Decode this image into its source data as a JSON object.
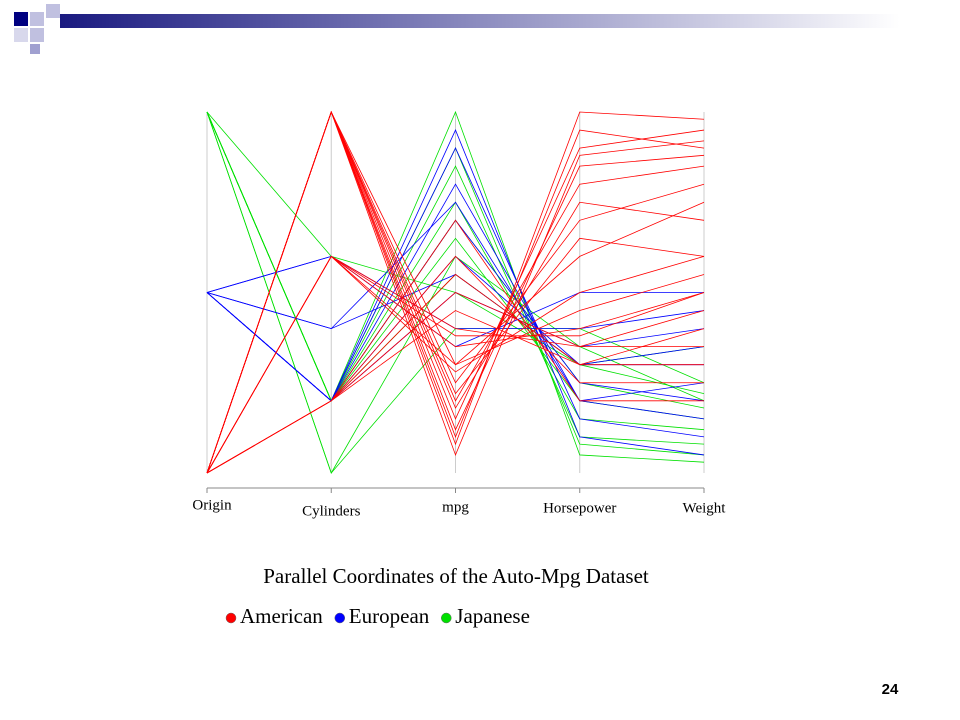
{
  "chart_data": {
    "type": "parallel",
    "title": "Parallel Coordinates of the Auto-Mpg Dataset",
    "axes": [
      "Origin",
      "Cylinders",
      "mpg",
      "Horsepower",
      "Weight"
    ],
    "ylim": [
      0,
      1
    ],
    "series": [
      {
        "name": "American",
        "color": "#ff0000",
        "values": [
          [
            0,
            1,
            0.15,
            0.9,
            0.95
          ],
          [
            0,
            1,
            0.2,
            0.8,
            0.85
          ],
          [
            0,
            1,
            0.1,
            0.95,
            0.9
          ],
          [
            0,
            1,
            0.25,
            0.7,
            0.8
          ],
          [
            0,
            1,
            0.18,
            0.75,
            0.7
          ],
          [
            0,
            1,
            0.3,
            0.6,
            0.75
          ],
          [
            0,
            1,
            0.12,
            0.85,
            0.88
          ],
          [
            0,
            1,
            0.22,
            0.65,
            0.6
          ],
          [
            0,
            0.6,
            0.35,
            0.4,
            0.5
          ],
          [
            0,
            0.6,
            0.3,
            0.45,
            0.55
          ],
          [
            0,
            0.6,
            0.4,
            0.35,
            0.45
          ],
          [
            0,
            0.6,
            0.28,
            0.5,
            0.6
          ],
          [
            0,
            0.2,
            0.55,
            0.3,
            0.3
          ],
          [
            0,
            0.2,
            0.6,
            0.25,
            0.25
          ],
          [
            0,
            0.2,
            0.5,
            0.35,
            0.35
          ],
          [
            0,
            0.2,
            0.7,
            0.2,
            0.2
          ],
          [
            0,
            0.2,
            0.45,
            0.3,
            0.4
          ],
          [
            0,
            1,
            0.08,
            1,
            0.98
          ],
          [
            0,
            0.6,
            0.38,
            0.38,
            0.5
          ],
          [
            0,
            1,
            0.05,
            0.88,
            0.92
          ]
        ]
      },
      {
        "name": "European",
        "color": "#0000ff",
        "values": [
          [
            0.5,
            0.2,
            0.9,
            0.15,
            0.1
          ],
          [
            0.5,
            0.2,
            0.95,
            0.1,
            0.05
          ],
          [
            0.5,
            0.2,
            0.7,
            0.25,
            0.2
          ],
          [
            0.5,
            0.2,
            0.6,
            0.3,
            0.3
          ],
          [
            0.5,
            0.4,
            0.55,
            0.3,
            0.35
          ],
          [
            0.5,
            0.6,
            0.4,
            0.4,
            0.45
          ],
          [
            0.5,
            0.2,
            0.8,
            0.2,
            0.15
          ],
          [
            0.5,
            0.2,
            0.5,
            0.35,
            0.4
          ],
          [
            0.5,
            0.4,
            0.75,
            0.2,
            0.25
          ],
          [
            0.5,
            0.6,
            0.35,
            0.5,
            0.5
          ]
        ]
      },
      {
        "name": "Japanese",
        "color": "#00e000",
        "values": [
          [
            1,
            0.2,
            1,
            0.05,
            0.03
          ],
          [
            1,
            0.2,
            0.85,
            0.1,
            0.08
          ],
          [
            1,
            0.2,
            0.75,
            0.15,
            0.12
          ],
          [
            1,
            0.2,
            0.65,
            0.2,
            0.15
          ],
          [
            1,
            0,
            0.6,
            0.35,
            0.2
          ],
          [
            1,
            0.6,
            0.5,
            0.3,
            0.35
          ],
          [
            1,
            0.2,
            0.9,
            0.08,
            0.05
          ],
          [
            1,
            0.2,
            0.7,
            0.25,
            0.18
          ],
          [
            1,
            0,
            0.4,
            0.4,
            0.25
          ],
          [
            1,
            0.2,
            0.55,
            0.3,
            0.22
          ]
        ]
      }
    ]
  },
  "page_number": "24"
}
